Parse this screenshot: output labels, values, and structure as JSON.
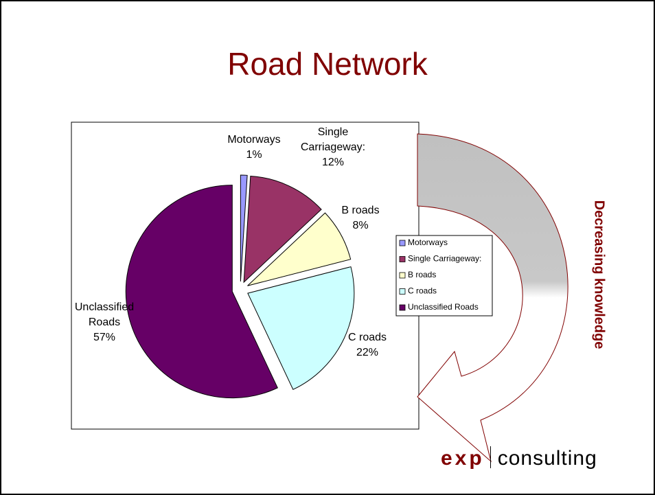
{
  "chart_data": {
    "type": "pie",
    "title": "Road Network",
    "categories": [
      "Motorways",
      "Single Carriageway:",
      "B roads",
      "C roads",
      "Unclassified Roads"
    ],
    "values": [
      1,
      12,
      8,
      22,
      57
    ],
    "value_labels": [
      "1%",
      "12%",
      "8%",
      "22%",
      "57%"
    ],
    "colors": [
      "#9999ff",
      "#993366",
      "#ffffcc",
      "#ccffff",
      "#660066"
    ],
    "legend": "right"
  },
  "annotation": "Decreasing knowledge",
  "logo": {
    "brand": "exp",
    "text": "consulting"
  }
}
